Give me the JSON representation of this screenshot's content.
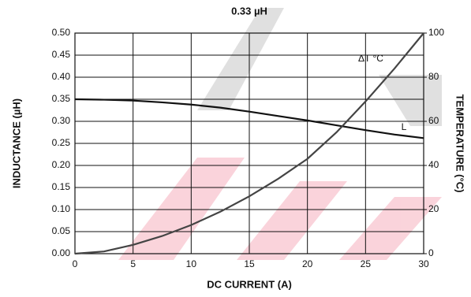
{
  "chart_data": {
    "type": "line",
    "title": "0.33 µH",
    "x_label": "DC CURRENT (A)",
    "y_label": "INDUCTANCE (µH)",
    "y2_label": "TEMPERATURE (°C)",
    "x": [
      0,
      2.5,
      5,
      7.5,
      10,
      12.5,
      15,
      17.5,
      20,
      22.5,
      25,
      27.5,
      30
    ],
    "series": [
      {
        "name": "L",
        "color": "#111111",
        "values": [
          0.35,
          0.349,
          0.347,
          0.343,
          0.338,
          0.331,
          0.322,
          0.312,
          0.302,
          0.291,
          0.28,
          0.27,
          0.262
        ]
      },
      {
        "name": "ΔT °C",
        "color": "#444444",
        "axis": "y2",
        "values": [
          0,
          1,
          4,
          8,
          13,
          19,
          26,
          34,
          43,
          55,
          69,
          84,
          100
        ]
      }
    ],
    "xlim": [
      0,
      30
    ],
    "xticks": [
      0,
      5,
      10,
      15,
      20,
      25,
      30
    ],
    "ylim": [
      0,
      0.5
    ],
    "yticks": [
      {
        "value": 0,
        "label": "0.00"
      },
      {
        "value": 0.05,
        "label": "0.05"
      },
      {
        "value": 0.1,
        "label": "0.10"
      },
      {
        "value": 0.15,
        "label": "0.15"
      },
      {
        "value": 0.2,
        "label": "0.20"
      },
      {
        "value": 0.25,
        "label": "0.25"
      },
      {
        "value": 0.3,
        "label": "0.30"
      },
      {
        "value": 0.35,
        "label": "0.35"
      },
      {
        "value": 0.4,
        "label": "0.40"
      },
      {
        "value": 0.45,
        "label": "0.45"
      },
      {
        "value": 0.5,
        "label": "0.50"
      }
    ],
    "y2lim": [
      0,
      100
    ],
    "y2ticks": [
      0,
      20,
      40,
      60,
      80,
      100
    ],
    "grid": true
  }
}
